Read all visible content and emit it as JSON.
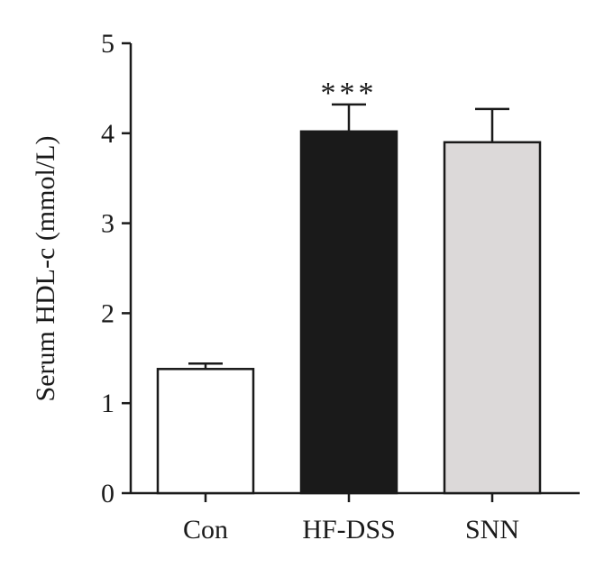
{
  "chart_data": {
    "type": "bar",
    "title": "",
    "xlabel": "",
    "ylabel": "Serum HDL-c (mmol/L)",
    "ylim": [
      0,
      5
    ],
    "yticks": [
      "0",
      "1",
      "2",
      "3",
      "4",
      "5"
    ],
    "categories": [
      "Con",
      "HF-DSS",
      "SNN"
    ],
    "values": [
      1.38,
      4.02,
      3.9
    ],
    "errors": [
      0.06,
      0.3,
      0.37
    ],
    "bar_colors": [
      "#ffffff",
      "#1a1a1a",
      "#dcd9d9"
    ],
    "annotations": [
      {
        "category": "HF-DSS",
        "text": "***"
      }
    ],
    "grid": false
  }
}
